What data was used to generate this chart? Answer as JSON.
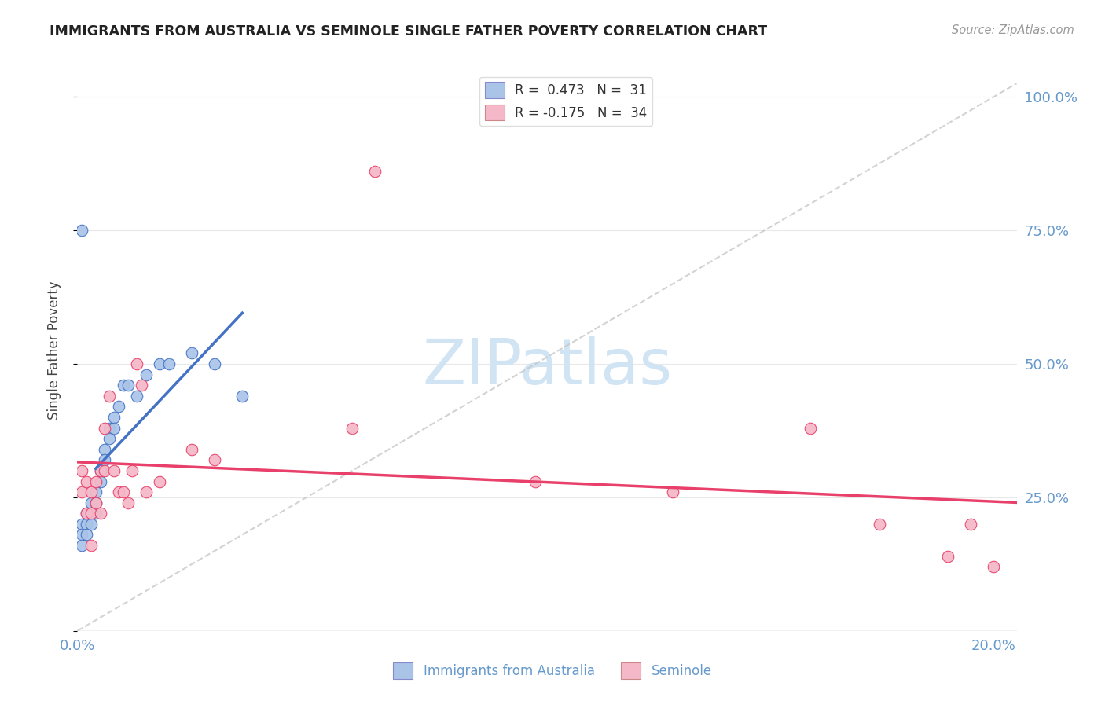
{
  "title": "IMMIGRANTS FROM AUSTRALIA VS SEMINOLE SINGLE FATHER POVERTY CORRELATION CHART",
  "source": "Source: ZipAtlas.com",
  "ylabel": "Single Father Poverty",
  "legend_label1": "R =  0.473   N =  31",
  "legend_label2": "R = -0.175   N =  34",
  "legend_bottom1": "Immigrants from Australia",
  "legend_bottom2": "Seminole",
  "color_blue": "#aac4e8",
  "color_pink": "#f5b8c8",
  "trendline_blue": "#4472c4",
  "trendline_pink": "#e8406a",
  "trendline_gray": "#c8c8c8",
  "background": "#ffffff",
  "grid_color": "#e8e8e8",
  "aus_x": [
    0.001,
    0.001,
    0.001,
    0.002,
    0.002,
    0.002,
    0.003,
    0.003,
    0.003,
    0.004,
    0.004,
    0.004,
    0.005,
    0.005,
    0.006,
    0.006,
    0.007,
    0.007,
    0.008,
    0.008,
    0.009,
    0.01,
    0.011,
    0.013,
    0.015,
    0.018,
    0.02,
    0.025,
    0.03,
    0.036,
    0.001
  ],
  "aus_y": [
    0.2,
    0.18,
    0.16,
    0.22,
    0.2,
    0.18,
    0.24,
    0.22,
    0.2,
    0.26,
    0.24,
    0.22,
    0.3,
    0.28,
    0.34,
    0.32,
    0.38,
    0.36,
    0.4,
    0.38,
    0.42,
    0.46,
    0.46,
    0.44,
    0.48,
    0.5,
    0.5,
    0.52,
    0.5,
    0.44,
    0.75
  ],
  "sem_x": [
    0.001,
    0.001,
    0.002,
    0.002,
    0.003,
    0.003,
    0.004,
    0.004,
    0.005,
    0.005,
    0.006,
    0.006,
    0.007,
    0.008,
    0.009,
    0.01,
    0.011,
    0.012,
    0.013,
    0.015,
    0.018,
    0.025,
    0.03,
    0.06,
    0.065,
    0.1,
    0.13,
    0.16,
    0.175,
    0.19,
    0.195,
    0.2,
    0.003,
    0.014
  ],
  "sem_y": [
    0.3,
    0.26,
    0.28,
    0.22,
    0.26,
    0.22,
    0.28,
    0.24,
    0.3,
    0.22,
    0.38,
    0.3,
    0.44,
    0.3,
    0.26,
    0.26,
    0.24,
    0.3,
    0.5,
    0.26,
    0.28,
    0.34,
    0.32,
    0.38,
    0.86,
    0.28,
    0.26,
    0.38,
    0.2,
    0.14,
    0.2,
    0.12,
    0.16,
    0.46
  ],
  "xlim": [
    0.0,
    0.205
  ],
  "ylim": [
    0.0,
    1.05
  ],
  "yticks": [
    0.0,
    0.25,
    0.5,
    0.75,
    1.0
  ],
  "ytick_labels_right": [
    "",
    "25.0%",
    "50.0%",
    "75.0%",
    "100.0%"
  ],
  "xtick_left_label": "0.0%",
  "xtick_right_label": "20.0%",
  "tick_color": "#6699cc",
  "watermark": "ZIPatlas",
  "watermark_color": "#d0e4f4"
}
